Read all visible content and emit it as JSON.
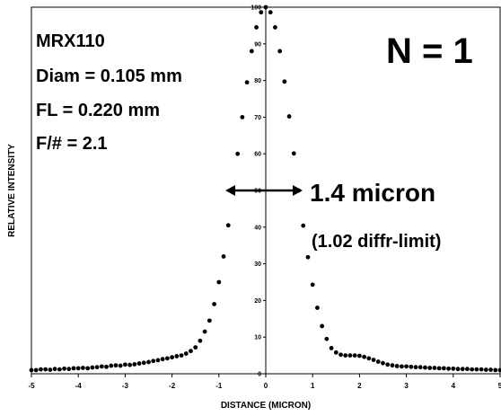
{
  "chart_data": {
    "type": "scatter",
    "y_label": "RELATIVE INTENSITY",
    "x_label": "DISTANCE (MICRON)",
    "annotations": [
      "MRX110",
      "Diam = 0.105 mm",
      "FL = 0.220 mm",
      "F/# = 2.1",
      "N = 1",
      "1.4 micron",
      "(1.02 diffr-limit)"
    ],
    "color": "#000000",
    "xlim": [
      -5,
      5
    ],
    "ylim": [
      0,
      100
    ],
    "xticks": [
      -5,
      -4,
      -3,
      -2,
      -1,
      0,
      1,
      2,
      3,
      4,
      5
    ],
    "yticks": [
      0,
      10,
      20,
      30,
      40,
      50,
      60,
      70,
      80,
      90,
      100
    ],
    "x": [
      -5.0,
      -4.9,
      -4.8,
      -4.7,
      -4.6,
      -4.5,
      -4.4,
      -4.3,
      -4.2,
      -4.1,
      -4.0,
      -3.9,
      -3.8,
      -3.7,
      -3.6,
      -3.5,
      -3.4,
      -3.3,
      -3.2,
      -3.1,
      -3.0,
      -2.9,
      -2.8,
      -2.7,
      -2.6,
      -2.5,
      -2.4,
      -2.3,
      -2.2,
      -2.1,
      -2.0,
      -1.9,
      -1.8,
      -1.7,
      -1.6,
      -1.5,
      -1.4,
      -1.3,
      -1.2,
      -1.1,
      -1.0,
      -0.9,
      -0.8,
      -0.7,
      -0.6,
      -0.5,
      -0.4,
      -0.3,
      -0.2,
      -0.1,
      0.0,
      0.1,
      0.2,
      0.3,
      0.4,
      0.5,
      0.6,
      0.7,
      0.8,
      0.9,
      1.0,
      1.1,
      1.2,
      1.3,
      1.4,
      1.5,
      1.6,
      1.7,
      1.8,
      1.9,
      2.0,
      2.1,
      2.2,
      2.3,
      2.4,
      2.5,
      2.6,
      2.7,
      2.8,
      2.9,
      3.0,
      3.1,
      3.2,
      3.3,
      3.4,
      3.5,
      3.6,
      3.7,
      3.8,
      3.9,
      4.0,
      4.1,
      4.2,
      4.3,
      4.4,
      4.5,
      4.6,
      4.7,
      4.8,
      4.9,
      5.0
    ],
    "values": [
      1,
      1,
      1.2,
      1.2,
      1.1,
      1.3,
      1.2,
      1.4,
      1.3,
      1.5,
      1.5,
      1.6,
      1.5,
      1.7,
      1.8,
      2,
      1.9,
      2.2,
      2.3,
      2.2,
      2.5,
      2.4,
      2.6,
      2.8,
      3,
      3.2,
      3.5,
      3.7,
      4,
      4.2,
      4.5,
      4.8,
      5,
      5.5,
      6.2,
      7.2,
      9,
      11.5,
      14.5,
      19,
      25,
      32,
      40.5,
      50,
      60,
      70,
      79.5,
      88,
      94.5,
      98.6,
      100,
      98.6,
      94.5,
      88,
      79.7,
      70.2,
      60.1,
      50,
      40.4,
      31.8,
      24.3,
      18,
      13,
      9.5,
      7,
      5.8,
      5.2,
      5,
      5,
      5,
      4.9,
      4.6,
      4.2,
      3.8,
      3.3,
      2.9,
      2.5,
      2.3,
      2.1,
      2,
      2,
      1.9,
      1.8,
      1.8,
      1.7,
      1.6,
      1.6,
      1.5,
      1.5,
      1.4,
      1.4,
      1.3,
      1.3,
      1.3,
      1.2,
      1.2,
      1.2,
      1.1,
      1.1,
      1,
      1
    ]
  }
}
